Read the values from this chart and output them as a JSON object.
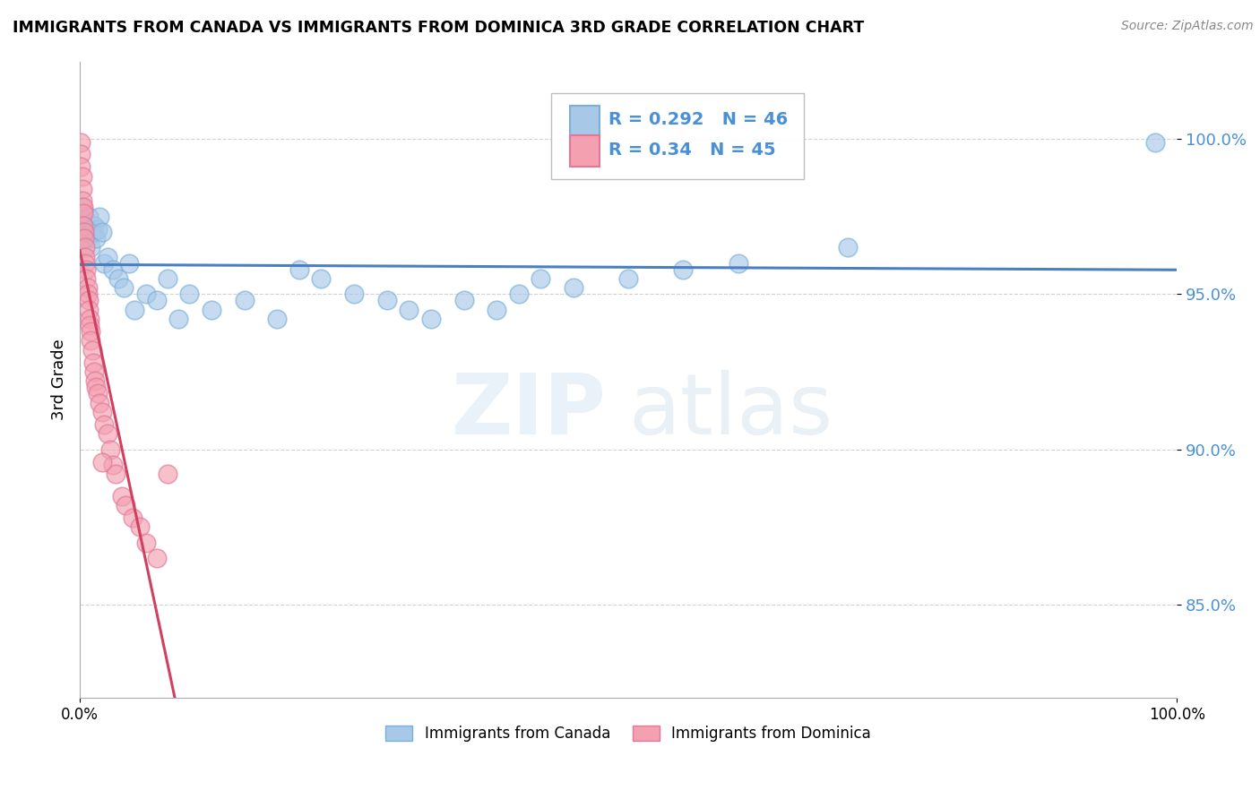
{
  "title": "IMMIGRANTS FROM CANADA VS IMMIGRANTS FROM DOMINICA 3RD GRADE CORRELATION CHART",
  "source": "Source: ZipAtlas.com",
  "ylabel": "3rd Grade",
  "xlabel": "",
  "xlim": [
    0.0,
    1.0
  ],
  "ylim": [
    0.82,
    1.025
  ],
  "yticks": [
    0.85,
    0.9,
    0.95,
    1.0
  ],
  "ytick_labels": [
    "85.0%",
    "90.0%",
    "95.0%",
    "100.0%"
  ],
  "xtick_labels": [
    "0.0%",
    "100.0%"
  ],
  "legend_entries": [
    "Immigrants from Canada",
    "Immigrants from Dominica"
  ],
  "R_canada": 0.292,
  "N_canada": 46,
  "R_dominica": 0.34,
  "N_dominica": 45,
  "canada_color": "#a8c8e8",
  "dominica_color": "#f4a0b0",
  "canada_edge": "#7ab0d8",
  "dominica_edge": "#e07898",
  "trend_color_canada": "#4a7fc0",
  "trend_color_dominica": "#d04060",
  "tick_color": "#4a90d9",
  "canada_x": [
    0.002,
    0.003,
    0.004,
    0.005,
    0.006,
    0.007,
    0.008,
    0.009,
    0.01,
    0.012,
    0.013,
    0.015,
    0.016,
    0.018,
    0.02,
    0.022,
    0.025,
    0.03,
    0.035,
    0.04,
    0.045,
    0.05,
    0.06,
    0.07,
    0.08,
    0.09,
    0.1,
    0.12,
    0.15,
    0.18,
    0.2,
    0.22,
    0.25,
    0.28,
    0.3,
    0.32,
    0.35,
    0.38,
    0.4,
    0.42,
    0.45,
    0.5,
    0.55,
    0.6,
    0.7,
    0.98
  ],
  "canada_y": [
    0.978,
    0.971,
    0.969,
    0.974,
    0.972,
    0.968,
    0.975,
    0.97,
    0.965,
    0.97,
    0.972,
    0.968,
    0.971,
    0.975,
    0.97,
    0.96,
    0.962,
    0.958,
    0.955,
    0.952,
    0.96,
    0.945,
    0.95,
    0.948,
    0.955,
    0.942,
    0.95,
    0.945,
    0.948,
    0.942,
    0.958,
    0.955,
    0.95,
    0.948,
    0.945,
    0.942,
    0.948,
    0.945,
    0.95,
    0.955,
    0.952,
    0.955,
    0.958,
    0.96,
    0.965,
    0.999
  ],
  "dominica_x": [
    0.001,
    0.001,
    0.001,
    0.002,
    0.002,
    0.002,
    0.003,
    0.003,
    0.003,
    0.004,
    0.004,
    0.005,
    0.005,
    0.005,
    0.006,
    0.006,
    0.007,
    0.007,
    0.008,
    0.008,
    0.009,
    0.009,
    0.01,
    0.01,
    0.011,
    0.012,
    0.013,
    0.014,
    0.015,
    0.016,
    0.018,
    0.02,
    0.022,
    0.025,
    0.028,
    0.03,
    0.033,
    0.038,
    0.042,
    0.048,
    0.055,
    0.06,
    0.07,
    0.08,
    0.02
  ],
  "dominica_y": [
    0.999,
    0.995,
    0.991,
    0.988,
    0.984,
    0.98,
    0.978,
    0.976,
    0.972,
    0.97,
    0.968,
    0.965,
    0.962,
    0.96,
    0.958,
    0.955,
    0.952,
    0.95,
    0.948,
    0.945,
    0.942,
    0.94,
    0.938,
    0.935,
    0.932,
    0.928,
    0.925,
    0.922,
    0.92,
    0.918,
    0.915,
    0.912,
    0.908,
    0.905,
    0.9,
    0.895,
    0.892,
    0.885,
    0.882,
    0.878,
    0.875,
    0.87,
    0.865,
    0.892,
    0.896
  ],
  "watermark_zip": "ZIP",
  "watermark_atlas": "atlas",
  "watermark_color": "#c8dff0",
  "watermark_alpha": 0.4
}
